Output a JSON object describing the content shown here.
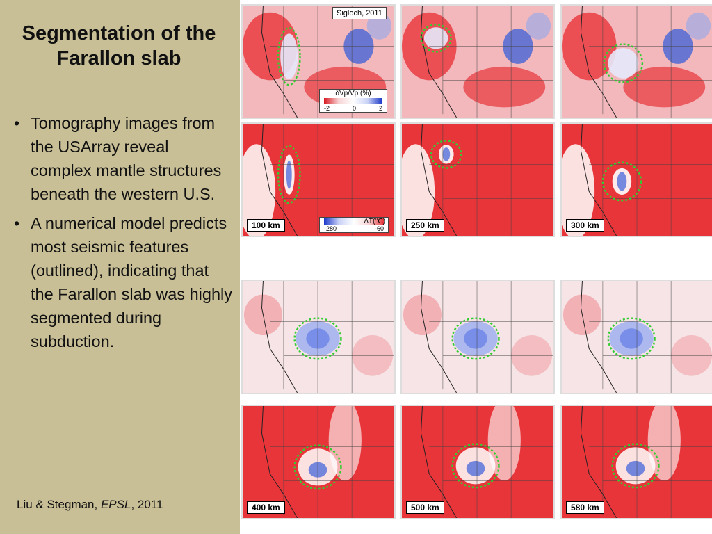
{
  "slide": {
    "title": "Segmentation of the Farallon slab",
    "bullets": [
      "Tomography images from the USArray reveal complex mantle structures beneath the western U.S.",
      "A numerical model predicts most seismic features (outlined), indicating that the Farallon slab was highly segmented during subduction."
    ],
    "citation": {
      "authors": "Liu & Stegman, ",
      "journal": "EPSL",
      "year": ", 2011"
    }
  },
  "figure": {
    "credit": "Sigloch, 2011",
    "tomo_colorbar": {
      "title": "δVp/Vp (%)",
      "ticks": [
        "-2",
        "0",
        "2"
      ]
    },
    "model_colorbar": {
      "title": "ΔT(°C)",
      "ticks": [
        "-280",
        "-60"
      ]
    },
    "depths_top": [
      "100 km",
      "250 km",
      "300 km"
    ],
    "depths_bottom": [
      "400 km",
      "500 km",
      "580 km"
    ],
    "colors": {
      "hot": "#e8353a",
      "cold": "#3a5fd8",
      "outline": "#33cc33",
      "background": "#c8bf97"
    }
  }
}
